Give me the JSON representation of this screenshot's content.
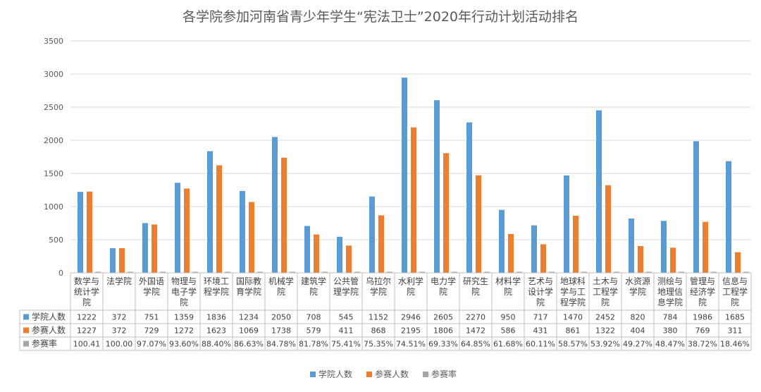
{
  "chart_data": {
    "type": "bar",
    "title": "各学院参加河南省青少年学生“宪法卫士”2020年行动计划活动排名",
    "categories": [
      [
        "数学与",
        "统计学",
        "院"
      ],
      [
        "法学院"
      ],
      [
        "外国语",
        "学院"
      ],
      [
        "物理与",
        "电子学",
        "院"
      ],
      [
        "环境工",
        "程学院"
      ],
      [
        "国际教",
        "育学院"
      ],
      [
        "机械学",
        "院"
      ],
      [
        "建筑学",
        "院"
      ],
      [
        "公共管",
        "理学院"
      ],
      [
        "乌拉尔",
        "学院"
      ],
      [
        "水利学",
        "院"
      ],
      [
        "电力学",
        "院"
      ],
      [
        "研究生",
        "院"
      ],
      [
        "材料学",
        "院"
      ],
      [
        "艺术与",
        "设计学",
        "院"
      ],
      [
        "地球科",
        "学与工",
        "程学院"
      ],
      [
        "土木与",
        "工程学",
        "院"
      ],
      [
        "水资源",
        "学院"
      ],
      [
        "测绘与",
        "地理信",
        "息学院"
      ],
      [
        "管理与",
        "经济学",
        "院"
      ],
      [
        "信息与",
        "工程学",
        "院"
      ]
    ],
    "ylim": [
      0,
      3500
    ],
    "yticks": [
      0,
      500,
      1000,
      1500,
      2000,
      2500,
      3000,
      3500
    ],
    "ytick_labels": [
      "0",
      "500",
      "1000",
      "1500",
      "2000",
      "2500",
      "3000",
      "3500"
    ],
    "grid": true,
    "legend_position": "bottom",
    "series": [
      {
        "name": "学院人数",
        "color": "#5b9bd5",
        "values": [
          1222,
          372,
          751,
          1359,
          1836,
          1234,
          2050,
          708,
          545,
          1152,
          2946,
          2605,
          2270,
          950,
          717,
          1470,
          2452,
          820,
          784,
          1986,
          1685
        ],
        "labels": [
          "1222",
          "372",
          "751",
          "1359",
          "1836",
          "1234",
          "2050",
          "708",
          "545",
          "1152",
          "2946",
          "2605",
          "2270",
          "950",
          "717",
          "1470",
          "2452",
          "820",
          "784",
          "1986",
          "1685"
        ]
      },
      {
        "name": "参赛人数",
        "color": "#ed7d31",
        "values": [
          1227,
          372,
          729,
          1272,
          1623,
          1069,
          1738,
          579,
          411,
          868,
          2195,
          1806,
          1472,
          586,
          431,
          861,
          1322,
          404,
          380,
          769,
          311
        ],
        "labels": [
          "1227",
          "372",
          "729",
          "1272",
          "1623",
          "1069",
          "1738",
          "579",
          "411",
          "868",
          "2195",
          "1806",
          "1472",
          "586",
          "431",
          "861",
          "1322",
          "404",
          "380",
          "769",
          "311"
        ]
      },
      {
        "name": "参赛率",
        "color": "#a5a5a5",
        "values": [
          1.0041,
          1.0,
          0.9707,
          0.936,
          0.884,
          0.8663,
          0.8478,
          0.8178,
          0.7541,
          0.7535,
          0.7451,
          0.6933,
          0.6485,
          0.6168,
          0.6011,
          0.5857,
          0.5392,
          0.4927,
          0.4847,
          0.3872,
          0.1846
        ],
        "labels": [
          "100.41",
          "100.00",
          "97.07%",
          "93.60%",
          "88.40%",
          "86.63%",
          "84.78%",
          "81.78%",
          "75.41%",
          "75.35%",
          "74.51%",
          "69.33%",
          "64.85%",
          "61.68%",
          "60.11%",
          "58.57%",
          "53.92%",
          "49.27%",
          "48.47%",
          "38.72%",
          "18.46%"
        ]
      }
    ]
  }
}
